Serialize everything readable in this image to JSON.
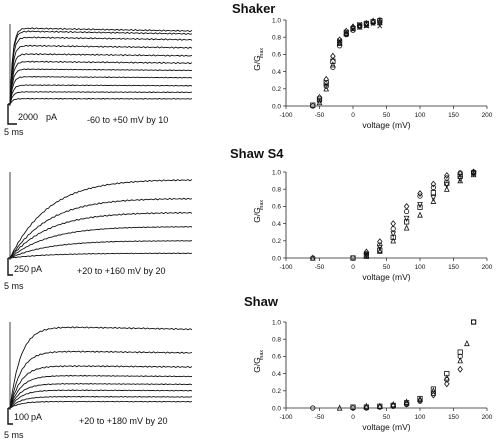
{
  "panels": [
    {
      "title": "Shaker",
      "traces": {
        "scale_current": "2000",
        "scale_current_unit": "pA",
        "scale_time": "5 ms",
        "protocol": "-60 to +50 mV by 10",
        "trace_levels": [
          0.07,
          0.16,
          0.25,
          0.36,
          0.46,
          0.56,
          0.66,
          0.77,
          0.88,
          0.96,
          1.0
        ],
        "rise_tau_fraction": 0.015
      },
      "chart_data": {
        "type": "scatter",
        "xlabel": "voltage (mV)",
        "ylabel": "G/G",
        "ylabel_sub": "max",
        "xlim": [
          -100,
          200
        ],
        "ylim": [
          0,
          1.0
        ],
        "xticks": [
          -100,
          -50,
          0,
          50,
          100,
          150,
          200
        ],
        "yticks": [
          0.0,
          0.2,
          0.4,
          0.6,
          0.8,
          1.0
        ],
        "series": [
          {
            "marker": "circle",
            "points": [
              [
                -60,
                0.0
              ],
              [
                -50,
                0.06
              ],
              [
                -40,
                0.23
              ],
              [
                -30,
                0.45
              ],
              [
                -20,
                0.7
              ],
              [
                -10,
                0.83
              ],
              [
                0,
                0.88
              ],
              [
                10,
                0.93
              ],
              [
                20,
                0.95
              ],
              [
                30,
                0.97
              ],
              [
                40,
                1.0
              ]
            ]
          },
          {
            "marker": "square",
            "points": [
              [
                -60,
                0.01
              ],
              [
                -50,
                0.08
              ],
              [
                -40,
                0.27
              ],
              [
                -30,
                0.52
              ],
              [
                -20,
                0.74
              ],
              [
                -10,
                0.85
              ],
              [
                0,
                0.9
              ],
              [
                10,
                0.94
              ],
              [
                20,
                0.96
              ],
              [
                30,
                0.98
              ],
              [
                40,
                0.99
              ]
            ]
          },
          {
            "marker": "diamond",
            "points": [
              [
                -50,
                0.1
              ],
              [
                -40,
                0.31
              ],
              [
                -30,
                0.58
              ],
              [
                -20,
                0.77
              ],
              [
                -10,
                0.87
              ],
              [
                0,
                0.92
              ],
              [
                10,
                0.93
              ],
              [
                20,
                0.96
              ],
              [
                30,
                0.97
              ],
              [
                40,
                0.98
              ]
            ]
          },
          {
            "marker": "triangle",
            "points": [
              [
                -50,
                0.04
              ],
              [
                -40,
                0.2
              ],
              [
                -30,
                0.48
              ],
              [
                -20,
                0.73
              ],
              [
                -10,
                0.84
              ],
              [
                0,
                0.91
              ],
              [
                10,
                0.92
              ],
              [
                20,
                0.94
              ],
              [
                30,
                0.99
              ],
              [
                40,
                0.97
              ]
            ]
          },
          {
            "marker": "cross",
            "points": [
              [
                -50,
                0.07
              ],
              [
                -40,
                0.25
              ],
              [
                -30,
                0.55
              ],
              [
                -20,
                0.76
              ],
              [
                -10,
                0.86
              ],
              [
                0,
                0.89
              ],
              [
                10,
                0.95
              ],
              [
                20,
                0.93
              ],
              [
                30,
                0.96
              ],
              [
                40,
                0.93
              ]
            ]
          }
        ]
      }
    },
    {
      "title": "Shaw S4",
      "traces": {
        "scale_current": "250",
        "scale_current_unit": "pA",
        "scale_time": "5 ms",
        "protocol": "+20 to +160 mV by 20",
        "trace_levels": [
          0.06,
          0.22,
          0.4,
          0.58,
          0.76,
          1.0
        ],
        "rise_tau_fraction": 0.22
      },
      "chart_data": {
        "type": "scatter",
        "xlabel": "voltage (mV)",
        "ylabel": "G/G",
        "ylabel_sub": "max",
        "xlim": [
          -100,
          200
        ],
        "ylim": [
          0,
          1.0
        ],
        "xticks": [
          -100,
          -50,
          0,
          50,
          100,
          150,
          200
        ],
        "yticks": [
          0.0,
          0.2,
          0.4,
          0.6,
          0.8,
          1.0
        ],
        "series": [
          {
            "marker": "circle",
            "points": [
              [
                -60,
                0.0
              ],
              [
                0,
                0.0
              ],
              [
                20,
                0.05
              ],
              [
                40,
                0.15
              ],
              [
                60,
                0.34
              ],
              [
                80,
                0.54
              ],
              [
                100,
                0.72
              ],
              [
                120,
                0.82
              ],
              [
                140,
                0.93
              ],
              [
                160,
                0.99
              ],
              [
                180,
                1.0
              ]
            ]
          },
          {
            "marker": "square",
            "points": [
              [
                0,
                0.0
              ],
              [
                20,
                0.03
              ],
              [
                40,
                0.09
              ],
              [
                60,
                0.24
              ],
              [
                80,
                0.42
              ],
              [
                100,
                0.59
              ],
              [
                120,
                0.76
              ],
              [
                140,
                0.87
              ],
              [
                160,
                0.95
              ],
              [
                180,
                0.99
              ]
            ]
          },
          {
            "marker": "diamond",
            "points": [
              [
                20,
                0.07
              ],
              [
                40,
                0.19
              ],
              [
                60,
                0.4
              ],
              [
                80,
                0.6
              ],
              [
                100,
                0.75
              ],
              [
                120,
                0.86
              ],
              [
                140,
                0.96
              ],
              [
                160,
                0.98
              ],
              [
                180,
                1.0
              ]
            ]
          },
          {
            "marker": "triangle",
            "points": [
              [
                -60,
                0.0
              ],
              [
                20,
                0.02
              ],
              [
                40,
                0.08
              ],
              [
                60,
                0.2
              ],
              [
                80,
                0.35
              ],
              [
                100,
                0.5
              ],
              [
                120,
                0.66
              ],
              [
                140,
                0.8
              ],
              [
                160,
                0.9
              ],
              [
                180,
                0.97
              ]
            ]
          },
          {
            "marker": "inv-triangle",
            "points": [
              [
                20,
                0.04
              ],
              [
                40,
                0.12
              ],
              [
                60,
                0.28
              ],
              [
                80,
                0.46
              ],
              [
                100,
                0.62
              ],
              [
                120,
                0.7
              ],
              [
                140,
                0.85
              ],
              [
                160,
                0.92
              ],
              [
                180,
                0.98
              ]
            ]
          }
        ]
      }
    },
    {
      "title": "Shaw",
      "traces": {
        "scale_current": "100",
        "scale_current_unit": "pA",
        "scale_time": "5 ms",
        "protocol": "+20 to +180 mV by 20",
        "trace_levels": [
          0.08,
          0.14,
          0.22,
          0.3,
          0.4,
          0.52,
          0.7,
          1.0
        ],
        "rise_tau_fraction": 0.06
      },
      "chart_data": {
        "type": "scatter",
        "xlabel": "voltage (mV)",
        "ylabel": "G/G",
        "ylabel_sub": "max",
        "xlim": [
          -100,
          200
        ],
        "ylim": [
          0,
          1.0
        ],
        "xticks": [
          -100,
          -50,
          0,
          50,
          100,
          150,
          200
        ],
        "yticks": [
          0.0,
          0.2,
          0.4,
          0.6,
          0.8,
          1.0
        ],
        "series": [
          {
            "marker": "circle",
            "points": [
              [
                -60,
                0.0
              ],
              [
                0,
                0.0
              ],
              [
                20,
                0.0
              ],
              [
                40,
                0.01
              ],
              [
                60,
                0.02
              ],
              [
                80,
                0.04
              ],
              [
                100,
                0.08
              ],
              [
                120,
                0.17
              ],
              [
                140,
                0.33
              ],
              [
                160,
                0.6
              ],
              [
                180,
                1.0
              ]
            ]
          },
          {
            "marker": "square",
            "points": [
              [
                0,
                0.01
              ],
              [
                20,
                0.01
              ],
              [
                40,
                0.02
              ],
              [
                60,
                0.03
              ],
              [
                80,
                0.06
              ],
              [
                100,
                0.11
              ],
              [
                120,
                0.22
              ],
              [
                140,
                0.4
              ],
              [
                160,
                0.65
              ],
              [
                180,
                1.0
              ]
            ]
          },
          {
            "marker": "triangle",
            "points": [
              [
                -20,
                0.0
              ],
              [
                20,
                0.02
              ],
              [
                40,
                0.02
              ],
              [
                60,
                0.04
              ],
              [
                80,
                0.07
              ],
              [
                100,
                0.1
              ],
              [
                120,
                0.2
              ],
              [
                140,
                0.35
              ],
              [
                160,
                0.55
              ],
              [
                170,
                0.75
              ]
            ]
          },
          {
            "marker": "diamond",
            "points": [
              [
                60,
                0.03
              ],
              [
                80,
                0.05
              ],
              [
                100,
                0.09
              ],
              [
                120,
                0.15
              ],
              [
                140,
                0.28
              ],
              [
                160,
                0.45
              ]
            ]
          }
        ]
      }
    }
  ],
  "style": {
    "ink": "#111111",
    "axis": "#222222",
    "background": "#ffffff"
  }
}
